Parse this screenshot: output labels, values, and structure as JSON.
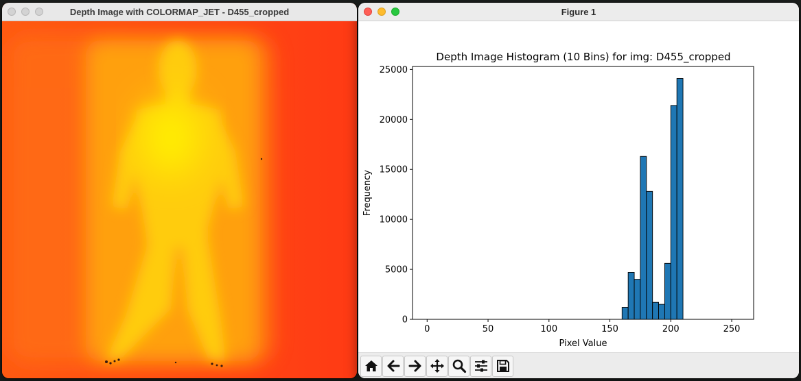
{
  "left_window": {
    "title": "Depth Image with COLORMAP_JET - D455_cropped",
    "colors": {
      "background": "#ff4a14",
      "mid": "#ff8a10",
      "body": "#ffc80a",
      "core": "#fff000"
    }
  },
  "right_window": {
    "title": "Figure 1",
    "toolbar": {
      "buttons": [
        {
          "name": "home",
          "icon": "home-icon"
        },
        {
          "name": "back",
          "icon": "arrow-left-icon"
        },
        {
          "name": "forward",
          "icon": "arrow-right-icon"
        },
        {
          "name": "pan",
          "icon": "move-icon"
        },
        {
          "name": "zoom",
          "icon": "magnifier-icon"
        },
        {
          "name": "configure-subplots",
          "icon": "sliders-icon"
        },
        {
          "name": "save",
          "icon": "floppy-disk-icon"
        }
      ]
    }
  },
  "chart_data": {
    "type": "bar",
    "title": "Depth Image Histogram (10 Bins) for img: D455_cropped",
    "xlabel": "Pixel Value",
    "ylabel": "Frequency",
    "xlim": [
      -12,
      268
    ],
    "ylim": [
      0,
      25300
    ],
    "xticks": [
      0,
      50,
      100,
      150,
      200,
      250
    ],
    "yticks": [
      0,
      5000,
      10000,
      15000,
      20000,
      25000
    ],
    "bin_width": 5,
    "bins": [
      {
        "x0": 0,
        "count": 0
      },
      {
        "x0": 5,
        "count": 0
      },
      {
        "x0": 10,
        "count": 0
      },
      {
        "x0": 15,
        "count": 0
      },
      {
        "x0": 20,
        "count": 0
      },
      {
        "x0": 25,
        "count": 0
      },
      {
        "x0": 30,
        "count": 0
      },
      {
        "x0": 35,
        "count": 0
      },
      {
        "x0": 40,
        "count": 0
      },
      {
        "x0": 45,
        "count": 0
      },
      {
        "x0": 50,
        "count": 0
      },
      {
        "x0": 55,
        "count": 0
      },
      {
        "x0": 60,
        "count": 0
      },
      {
        "x0": 65,
        "count": 0
      },
      {
        "x0": 70,
        "count": 0
      },
      {
        "x0": 75,
        "count": 0
      },
      {
        "x0": 80,
        "count": 0
      },
      {
        "x0": 85,
        "count": 0
      },
      {
        "x0": 90,
        "count": 0
      },
      {
        "x0": 95,
        "count": 0
      },
      {
        "x0": 100,
        "count": 0
      },
      {
        "x0": 105,
        "count": 0
      },
      {
        "x0": 110,
        "count": 0
      },
      {
        "x0": 115,
        "count": 0
      },
      {
        "x0": 120,
        "count": 0
      },
      {
        "x0": 125,
        "count": 0
      },
      {
        "x0": 130,
        "count": 0
      },
      {
        "x0": 135,
        "count": 0
      },
      {
        "x0": 140,
        "count": 0
      },
      {
        "x0": 145,
        "count": 0
      },
      {
        "x0": 150,
        "count": 0
      },
      {
        "x0": 155,
        "count": 0
      },
      {
        "x0": 160,
        "count": 1200
      },
      {
        "x0": 165,
        "count": 4700
      },
      {
        "x0": 170,
        "count": 4000
      },
      {
        "x0": 175,
        "count": 16300
      },
      {
        "x0": 180,
        "count": 12800
      },
      {
        "x0": 185,
        "count": 1700
      },
      {
        "x0": 190,
        "count": 1500
      },
      {
        "x0": 195,
        "count": 5600
      },
      {
        "x0": 200,
        "count": 21400
      },
      {
        "x0": 205,
        "count": 24100
      },
      {
        "x0": 210,
        "count": 0
      },
      {
        "x0": 215,
        "count": 0
      },
      {
        "x0": 220,
        "count": 0
      },
      {
        "x0": 225,
        "count": 0
      },
      {
        "x0": 230,
        "count": 0
      },
      {
        "x0": 235,
        "count": 0
      },
      {
        "x0": 240,
        "count": 0
      },
      {
        "x0": 245,
        "count": 0
      },
      {
        "x0": 250,
        "count": 0
      }
    ],
    "bar_color": "#1f77b4",
    "edge_color": "#000000",
    "grid": false
  }
}
